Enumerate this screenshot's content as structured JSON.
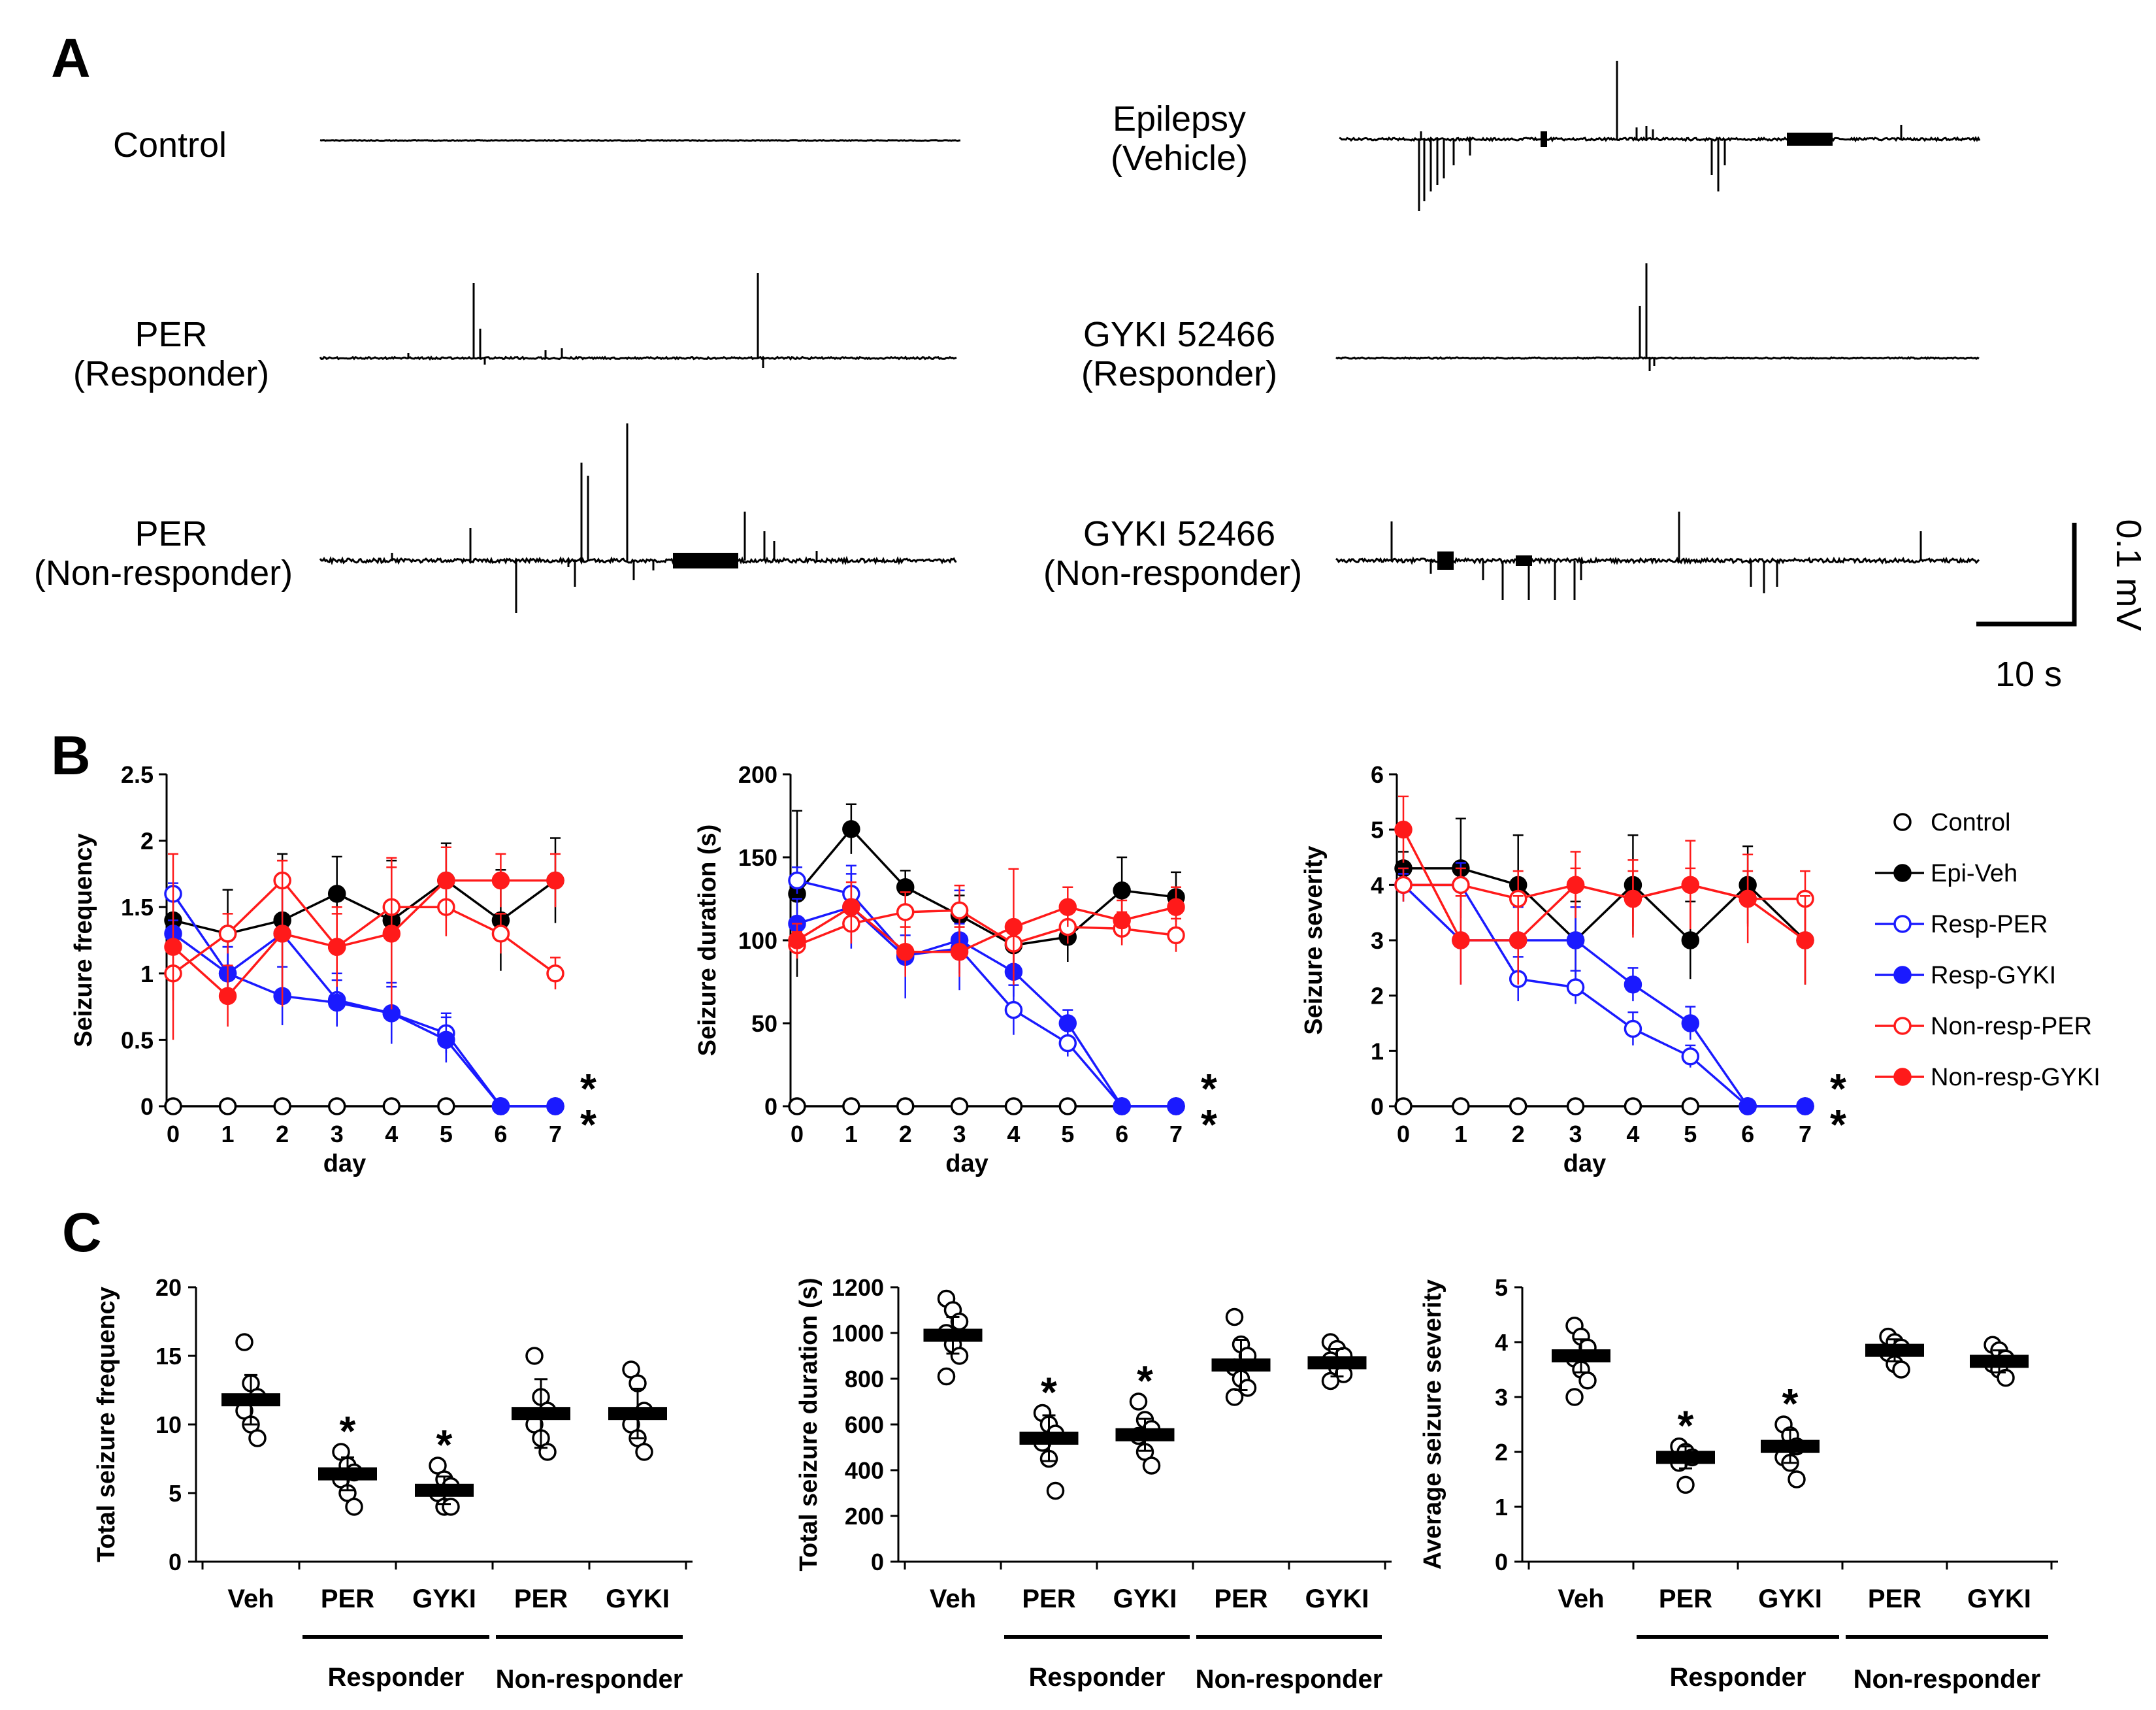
{
  "panels": {
    "a": "A",
    "b": "B",
    "c": "C"
  },
  "panel_a": {
    "traces": [
      {
        "id": "control",
        "line1": "Control",
        "line2": ""
      },
      {
        "id": "epilepsy",
        "line1": "Epilepsy",
        "line2": "(Vehicle)"
      },
      {
        "id": "per-resp",
        "line1": "PER",
        "line2": "(Responder)"
      },
      {
        "id": "gyki-resp",
        "line1": "GYKI 52466",
        "line2": "(Responder)"
      },
      {
        "id": "per-nonresp",
        "line1": "PER",
        "line2": "(Non-responder)"
      },
      {
        "id": "gyki-nonresp",
        "line1": "GYKI 52466",
        "line2": "(Non-responder)"
      }
    ],
    "scalebar": {
      "voltage": "0.1 mV",
      "time": "10 s"
    }
  },
  "colors": {
    "black": "#000000",
    "blue": "#1a1aff",
    "red": "#ff1a1a"
  },
  "chart_data": [
    {
      "type": "line",
      "title": "",
      "xlabel": "day",
      "ylabel": "Seizure frequency",
      "ylim": [
        0,
        2.5
      ],
      "yticks": [
        "0",
        "0.5",
        "1",
        "1.5",
        "2",
        "2.5"
      ],
      "x": [
        0,
        1,
        2,
        3,
        4,
        5,
        6,
        7
      ],
      "series": [
        {
          "name": "Control",
          "color": "black",
          "filled": false,
          "values": [
            0,
            0,
            0,
            0,
            0,
            0,
            0,
            0
          ],
          "err": [
            0,
            0,
            0,
            0,
            0,
            0,
            0,
            0
          ]
        },
        {
          "name": "Epi-Veh",
          "color": "black",
          "filled": true,
          "values": [
            1.4,
            1.3,
            1.4,
            1.6,
            1.4,
            1.7,
            1.4,
            1.7
          ],
          "err": [
            0.25,
            0.33,
            0.5,
            0.28,
            0.45,
            0.28,
            0.38,
            0.32
          ]
        },
        {
          "name": "Resp-PER",
          "color": "blue",
          "filled": false,
          "values": [
            1.6,
            1.0,
            1.3,
            0.8,
            0.7,
            0.55,
            0,
            0
          ],
          "err": [
            0.08,
            0.2,
            0.45,
            0.2,
            0.2,
            0.15,
            0,
            0
          ]
        },
        {
          "name": "Resp-GYKI",
          "color": "blue",
          "filled": true,
          "values": [
            1.3,
            1.0,
            0.83,
            0.78,
            0.7,
            0.5,
            0,
            0
          ],
          "err": [
            0.1,
            0.2,
            0.22,
            0.17,
            0.23,
            0.17,
            0,
            0
          ]
        },
        {
          "name": "Non-resp-PER",
          "color": "red",
          "filled": false,
          "values": [
            1.0,
            1.3,
            1.7,
            1.2,
            1.5,
            1.5,
            1.3,
            1.0
          ],
          "err": [
            0.2,
            0.15,
            0.15,
            0.3,
            0.3,
            0.22,
            0.15,
            0.12
          ]
        },
        {
          "name": "Non-resp-GYKI",
          "color": "red",
          "filled": true,
          "values": [
            1.2,
            0.83,
            1.3,
            1.2,
            1.3,
            1.7,
            1.7,
            1.7
          ],
          "err": [
            0.7,
            0.23,
            0.55,
            0.25,
            0.57,
            0.25,
            0.2,
            0.2
          ]
        }
      ],
      "markers": [
        "*",
        "*"
      ]
    },
    {
      "type": "line",
      "title": "",
      "xlabel": "day",
      "ylabel": "Seizure duration (s)",
      "ylim": [
        0,
        200
      ],
      "yticks": [
        "0",
        "50",
        "100",
        "150",
        "200"
      ],
      "x": [
        0,
        1,
        2,
        3,
        4,
        5,
        6,
        7
      ],
      "series": [
        {
          "name": "Control",
          "color": "black",
          "filled": false,
          "values": [
            0,
            0,
            0,
            0,
            0,
            0,
            0,
            0
          ],
          "err": [
            0,
            0,
            0,
            0,
            0,
            0,
            0,
            0
          ]
        },
        {
          "name": "Epi-Veh",
          "color": "black",
          "filled": true,
          "values": [
            128,
            167,
            132,
            115,
            97,
            102,
            130,
            126
          ],
          "err": [
            50,
            15,
            10,
            12,
            10,
            15,
            20,
            15
          ]
        },
        {
          "name": "Resp-PER",
          "color": "blue",
          "filled": false,
          "values": [
            136,
            128,
            91,
            95,
            58,
            38,
            0,
            0
          ],
          "err": [
            8,
            12,
            12,
            15,
            15,
            8,
            0,
            0
          ]
        },
        {
          "name": "Resp-GYKI",
          "color": "blue",
          "filled": true,
          "values": [
            110,
            120,
            90,
            100,
            81,
            50,
            0,
            0
          ],
          "err": [
            15,
            25,
            25,
            30,
            15,
            8,
            0,
            0
          ]
        },
        {
          "name": "Non-resp-PER",
          "color": "red",
          "filled": false,
          "values": [
            97,
            110,
            117,
            118,
            98,
            108,
            107,
            103
          ],
          "err": [
            8,
            12,
            12,
            15,
            12,
            10,
            10,
            10
          ]
        },
        {
          "name": "Non-resp-GYKI",
          "color": "red",
          "filled": true,
          "values": [
            100,
            120,
            93,
            93,
            108,
            120,
            112,
            120
          ],
          "err": [
            10,
            15,
            15,
            15,
            35,
            12,
            12,
            12
          ]
        }
      ],
      "markers": [
        "*",
        "*"
      ]
    },
    {
      "type": "line",
      "title": "",
      "xlabel": "day",
      "ylabel": "Seizure severity",
      "ylim": [
        0,
        6
      ],
      "yticks": [
        "0",
        "1",
        "2",
        "3",
        "4",
        "5",
        "6"
      ],
      "x": [
        0,
        1,
        2,
        3,
        4,
        5,
        6,
        7
      ],
      "series": [
        {
          "name": "Control",
          "color": "black",
          "filled": false,
          "values": [
            0,
            0,
            0,
            0,
            0,
            0,
            0,
            0
          ],
          "err": [
            0,
            0,
            0,
            0,
            0,
            0,
            0,
            0
          ]
        },
        {
          "name": "Epi-Veh",
          "color": "black",
          "filled": true,
          "values": [
            4.3,
            4.3,
            4.0,
            3.0,
            4.0,
            3.0,
            4.0,
            3.0
          ],
          "err": [
            0.3,
            0.9,
            0.9,
            0.7,
            0.9,
            0.7,
            0.7,
            0.8
          ]
        },
        {
          "name": "Resp-PER",
          "color": "blue",
          "filled": false,
          "values": [
            4.0,
            4.0,
            2.3,
            2.15,
            1.4,
            0.9,
            0,
            0
          ],
          "err": [
            0.2,
            0.4,
            0.4,
            0.3,
            0.3,
            0.2,
            0,
            0
          ]
        },
        {
          "name": "Resp-GYKI",
          "color": "blue",
          "filled": true,
          "values": [
            4.0,
            3.0,
            3.0,
            3.0,
            2.2,
            1.5,
            0,
            0
          ],
          "err": [
            0.3,
            0.8,
            0.6,
            0.6,
            0.3,
            0.3,
            0,
            0
          ]
        },
        {
          "name": "Non-resp-PER",
          "color": "red",
          "filled": false,
          "values": [
            4.0,
            4.0,
            3.75,
            4.0,
            3.75,
            4.0,
            3.75,
            3.75
          ],
          "err": [
            0.3,
            0.3,
            0.5,
            0.3,
            0.5,
            0.3,
            0.5,
            0.5
          ]
        },
        {
          "name": "Non-resp-GYKI",
          "color": "red",
          "filled": true,
          "values": [
            5.0,
            3.0,
            3.0,
            4.0,
            3.75,
            4.0,
            3.75,
            3.0
          ],
          "err": [
            0.6,
            0.8,
            0.8,
            0.6,
            0.7,
            0.8,
            0.8,
            0.8
          ]
        }
      ],
      "markers": [
        "*",
        "*"
      ]
    },
    {
      "type": "scatter",
      "title": "",
      "ylabel": "Total seizure frequency",
      "ylim": [
        0,
        20
      ],
      "yticks": [
        "0",
        "5",
        "10",
        "15",
        "20"
      ],
      "categories": [
        "Veh",
        "PER",
        "GYKI",
        "PER",
        "GYKI"
      ],
      "groups": [
        "Responder",
        "Non-responder"
      ],
      "means": [
        11.8,
        6.4,
        5.2,
        10.8,
        10.8
      ],
      "err": [
        1.8,
        1.2,
        1.0,
        2.5,
        1.8
      ],
      "points": [
        [
          16,
          13,
          12,
          11,
          10,
          9
        ],
        [
          8,
          7,
          6.5,
          6,
          5,
          4
        ],
        [
          7,
          6,
          5.5,
          5,
          4,
          4
        ],
        [
          15,
          12,
          11,
          10,
          9,
          8
        ],
        [
          14,
          13,
          11,
          10,
          9,
          8
        ]
      ],
      "stars": [
        false,
        true,
        true,
        false,
        false
      ]
    },
    {
      "type": "scatter",
      "title": "",
      "ylabel": "Total seizure duration (s)",
      "ylim": [
        0,
        1200
      ],
      "yticks": [
        "0",
        "200",
        "400",
        "600",
        "800",
        "1000",
        "1200"
      ],
      "categories": [
        "Veh",
        "PER",
        "GYKI",
        "PER",
        "GYKI"
      ],
      "groups": [
        "Responder",
        "Non-responder"
      ],
      "means": [
        990,
        540,
        555,
        860,
        870
      ],
      "err": [
        80,
        100,
        70,
        110,
        60
      ],
      "points": [
        [
          1150,
          1100,
          1050,
          1000,
          950,
          900,
          810
        ],
        [
          650,
          600,
          560,
          520,
          450,
          310
        ],
        [
          700,
          620,
          580,
          550,
          480,
          420
        ],
        [
          1070,
          950,
          900,
          850,
          800,
          760,
          720
        ],
        [
          960,
          930,
          900,
          880,
          850,
          820,
          790
        ]
      ],
      "stars": [
        false,
        true,
        true,
        false,
        false
      ]
    },
    {
      "type": "scatter",
      "title": "",
      "ylabel": "Average seizure severity",
      "ylim": [
        0,
        5
      ],
      "yticks": [
        "0",
        "1",
        "2",
        "3",
        "4",
        "5"
      ],
      "categories": [
        "Veh",
        "PER",
        "GYKI",
        "PER",
        "GYKI"
      ],
      "groups": [
        "Responder",
        "Non-responder"
      ],
      "means": [
        3.75,
        1.9,
        2.1,
        3.85,
        3.65
      ],
      "err": [
        0.3,
        0.2,
        0.3,
        0.2,
        0.2
      ],
      "points": [
        [
          4.3,
          4.1,
          3.9,
          3.7,
          3.5,
          3.3,
          3.0
        ],
        [
          2.1,
          2.0,
          1.9,
          1.8,
          1.4
        ],
        [
          2.5,
          2.3,
          2.1,
          1.9,
          1.8,
          1.5
        ],
        [
          4.1,
          4.0,
          3.9,
          3.8,
          3.6,
          3.5
        ],
        [
          3.95,
          3.85,
          3.7,
          3.6,
          3.5,
          3.35
        ]
      ],
      "stars": [
        false,
        true,
        true,
        false,
        false
      ]
    }
  ]
}
